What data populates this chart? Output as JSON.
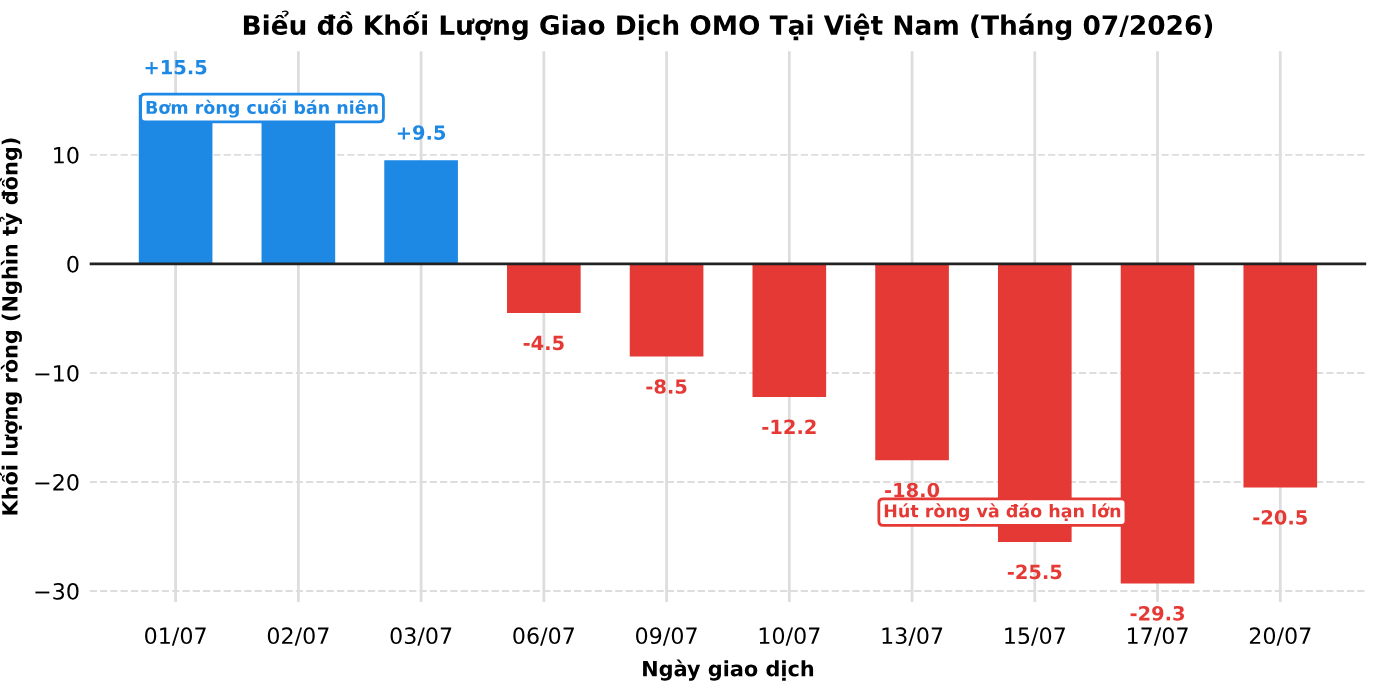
{
  "chart_data": {
    "type": "bar",
    "title": "Biểu đồ Khối Lượng Giao Dịch OMO Tại Việt Nam (Tháng 07/2026)",
    "xlabel": "Ngày giao dịch",
    "ylabel": "Khối lượng ròng (Nghìn tỷ đồng)",
    "categories": [
      "01/07",
      "02/07",
      "03/07",
      "06/07",
      "09/07",
      "10/07",
      "13/07",
      "15/07",
      "17/07",
      "20/07"
    ],
    "values": [
      15.5,
      13.0,
      9.5,
      -4.5,
      -8.5,
      -12.2,
      -18.0,
      -25.5,
      -29.3,
      -20.5
    ],
    "colors": [
      "#1e88e5",
      "#1e88e5",
      "#1e88e5",
      "#e53935",
      "#e53935",
      "#e53935",
      "#e53935",
      "#e53935",
      "#e53935",
      "#e53935"
    ],
    "value_labels": [
      "+15.5",
      null,
      "+9.5",
      "-4.5",
      "-8.5",
      "-12.2",
      "-18.0",
      "-25.5",
      "-29.3",
      "-20.5"
    ],
    "ylim": [
      -31,
      19.5
    ],
    "yticks": [
      {
        "value": -30,
        "label": "−30"
      },
      {
        "value": -20,
        "label": "−20"
      },
      {
        "value": -10,
        "label": "−10"
      },
      0,
      10
    ],
    "grid": true,
    "ref_lines": [
      {
        "axis": "y",
        "value": 0,
        "color": "#222222"
      }
    ],
    "annotations": [
      "Bơm ròng cuối bán niên",
      "Hút ròng và đáo hạn lớn"
    ]
  }
}
